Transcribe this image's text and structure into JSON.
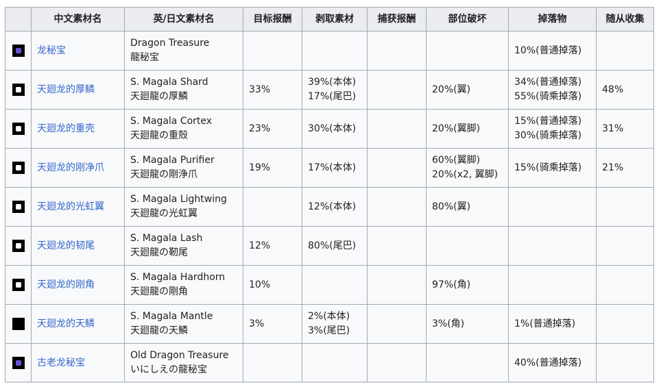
{
  "headers": {
    "icon": "",
    "cn_name": "中文素材名",
    "en_jp_name": "英/日文素材名",
    "target_reward": "目标报酬",
    "carve": "剥取素材",
    "capture_reward": "捕获报酬",
    "break": "部位破坏",
    "drops": "掉落物",
    "palico": "随从收集"
  },
  "rows": [
    {
      "icon": "treasure-icon",
      "icon_color": "#6b4fd8",
      "cn": "龙秘宝",
      "en": "Dragon Treasure",
      "jp": "龍秘宝",
      "target": "",
      "carve1": "",
      "carve2": "",
      "capture": "",
      "break1": "",
      "break2": "",
      "drop1": "10%(普通掉落)",
      "drop2": "",
      "palico": ""
    },
    {
      "icon": "shard-icon",
      "icon_color": "#ffffff",
      "cn": "天廻龙的厚鳞",
      "en": "S. Magala Shard",
      "jp": "天廻龍の厚鱗",
      "target": "33%",
      "carve1": "39%(本体)",
      "carve2": "17%(尾巴)",
      "capture": "",
      "break1": "20%(翼)",
      "break2": "",
      "drop1": "34%(普通掉落)",
      "drop2": "55%(骑乘掉落)",
      "palico": "48%"
    },
    {
      "icon": "cortex-icon",
      "icon_color": "#ffffff",
      "cn": "天廻龙的重壳",
      "en": "S. Magala Cortex",
      "jp": "天廻龍の重殻",
      "target": "23%",
      "carve1": "30%(本体)",
      "carve2": "",
      "capture": "",
      "break1": "20%(翼脚)",
      "break2": "",
      "drop1": "15%(普通掉落)",
      "drop2": "30%(骑乘掉落)",
      "palico": "31%"
    },
    {
      "icon": "claw-icon",
      "icon_color": "#ffffff",
      "cn": "天廻龙的刚净爪",
      "en": "S. Magala Purifier",
      "jp": "天廻龍の剛浄爪",
      "target": "19%",
      "carve1": "17%(本体)",
      "carve2": "",
      "capture": "",
      "break1": "60%(翼脚)",
      "break2": "20%(x2, 翼脚)",
      "drop1": "15%(骑乘掉落)",
      "drop2": "",
      "palico": "21%"
    },
    {
      "icon": "wing-icon",
      "icon_color": "#ffffff",
      "cn": "天廻龙的光虹翼",
      "en": "S. Magala Lightwing",
      "jp": "天廻龍の光虹翼",
      "target": "",
      "carve1": "12%(本体)",
      "carve2": "",
      "capture": "",
      "break1": "80%(翼)",
      "break2": "",
      "drop1": "",
      "drop2": "",
      "palico": ""
    },
    {
      "icon": "tail-icon",
      "icon_color": "#ffffff",
      "cn": "天廻龙的韧尾",
      "en": "S. Magala Lash",
      "jp": "天廻龍の靭尾",
      "target": "12%",
      "carve1": "80%(尾巴)",
      "carve2": "",
      "capture": "",
      "break1": "",
      "break2": "",
      "drop1": "",
      "drop2": "",
      "palico": ""
    },
    {
      "icon": "horn-icon",
      "icon_color": "#ffffff",
      "cn": "天廻龙的刚角",
      "en": "S. Magala Hardhorn",
      "jp": "天廻龍の剛角",
      "target": "10%",
      "carve1": "",
      "carve2": "",
      "capture": "",
      "break1": "97%(角)",
      "break2": "",
      "drop1": "",
      "drop2": "",
      "palico": ""
    },
    {
      "icon": "mantle-icon",
      "icon_color": "",
      "cn": "天廻龙的天鳞",
      "en": "S. Magala Mantle",
      "jp": "天廻龍の天鱗",
      "target": "3%",
      "carve1": "2%(本体)",
      "carve2": "3%(尾巴)",
      "capture": "",
      "break1": "3%(角)",
      "break2": "",
      "drop1": "1%(普通掉落)",
      "drop2": "",
      "palico": ""
    },
    {
      "icon": "treasure-icon",
      "icon_color": "#6b4fd8",
      "cn": "古老龙秘宝",
      "en": "Old Dragon Treasure",
      "jp": "いにしえの龍秘宝",
      "target": "",
      "carve1": "",
      "carve2": "",
      "capture": "",
      "break1": "",
      "break2": "",
      "drop1": "40%(普通掉落)",
      "drop2": "",
      "palico": ""
    }
  ]
}
